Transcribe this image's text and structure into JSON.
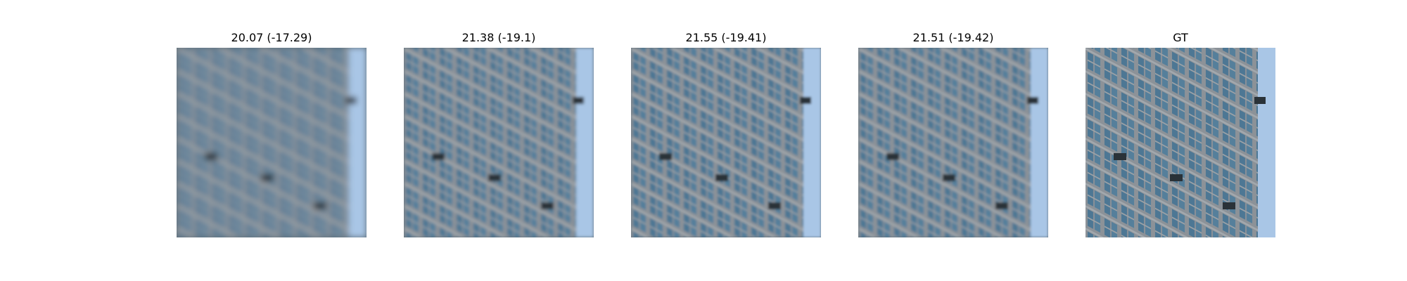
{
  "panels": [
    {
      "title": "20.07 (-17.29)",
      "image": "blurry-building-facade-reconstruction"
    },
    {
      "title": "21.38 (-19.1)",
      "image": "building-facade-reconstruction"
    },
    {
      "title": "21.55 (-19.41)",
      "image": "building-facade-reconstruction"
    },
    {
      "title": "21.51 (-19.42)",
      "image": "building-facade-reconstruction"
    },
    {
      "title": "GT",
      "image": "building-facade-ground-truth"
    }
  ],
  "colors": {
    "sky": "#a9c6e6",
    "facade_frame": "#8f959b",
    "window_glass": "#4f7894",
    "dark_units": "#2b3238"
  }
}
